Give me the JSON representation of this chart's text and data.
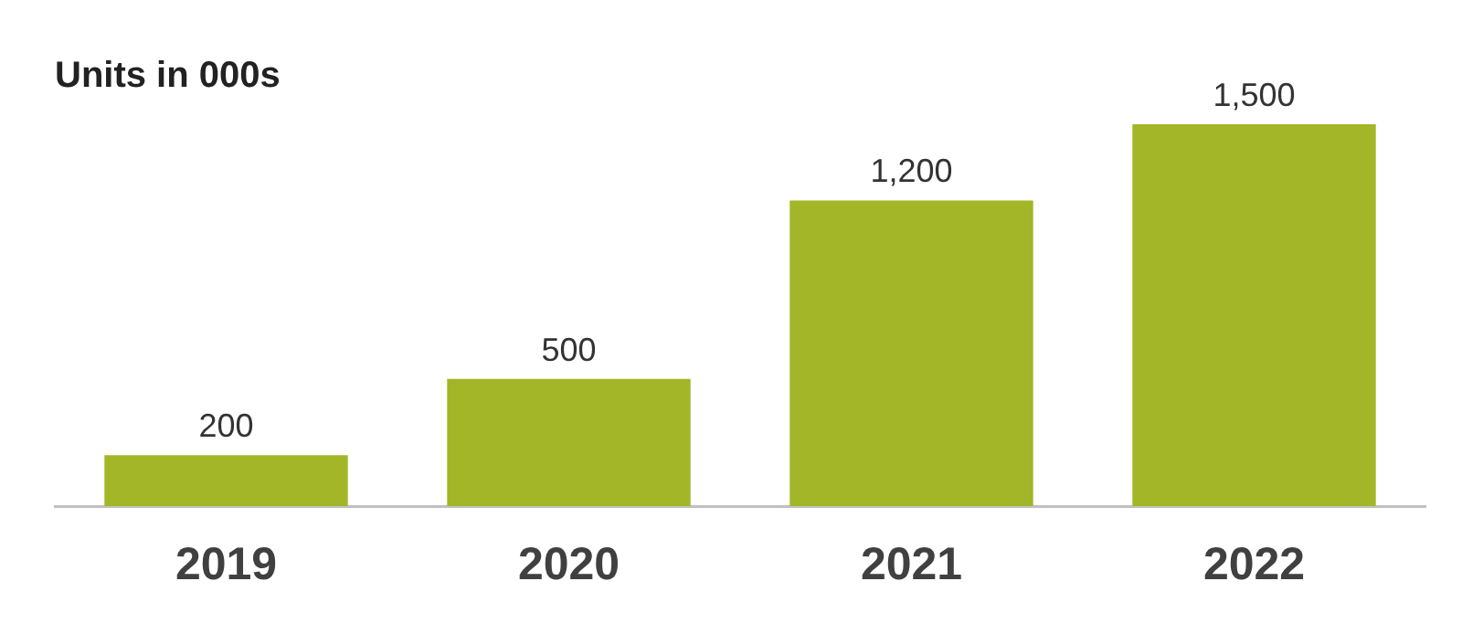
{
  "chart_data": {
    "type": "bar",
    "title": "Units in 000s",
    "categories": [
      "2019",
      "2020",
      "2021",
      "2022"
    ],
    "values": [
      200,
      500,
      1200,
      1500
    ],
    "value_labels": [
      "200",
      "500",
      "1,200",
      "1,500"
    ],
    "color": "#a3b628",
    "grid": false,
    "legend": false
  }
}
